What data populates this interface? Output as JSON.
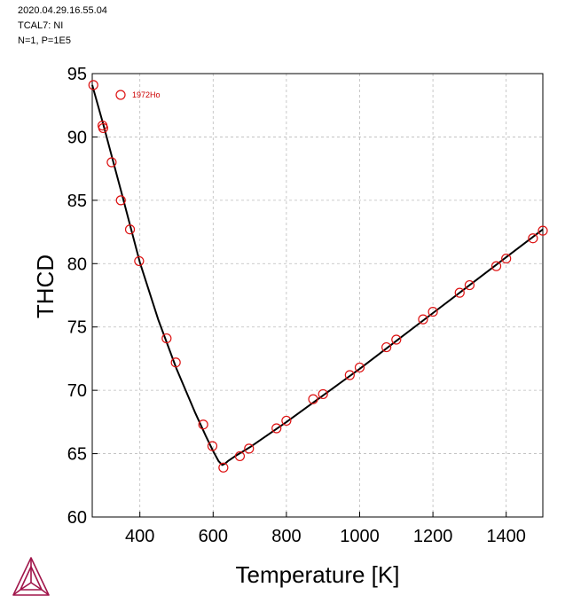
{
  "header": {
    "line1": "2020.04.29.16.55.04",
    "line2": "TCAL7: NI",
    "line3": "N=1, P=1E5"
  },
  "colors": {
    "curve": "#000000",
    "markers": "#dd1111",
    "grid": "#bbbbbb",
    "logo": "#a0154a"
  },
  "icon": "thermo-calc-logo-icon",
  "chart_data": {
    "type": "line",
    "xlabel": "Temperature [K]",
    "ylabel": "THCD",
    "xlim": [
      270,
      1500
    ],
    "ylim": [
      60,
      95
    ],
    "xticks": [
      400,
      600,
      800,
      1000,
      1200,
      1400
    ],
    "yticks": [
      60,
      65,
      70,
      75,
      80,
      85,
      90,
      95
    ],
    "grid": true,
    "legend_position": "top-left",
    "series": [
      {
        "type": "line",
        "x": [
          270,
          300,
          350,
          400,
          450,
          500,
          550,
          580,
          600,
          615,
          625,
          632,
          640,
          660,
          700,
          800,
          900,
          1000,
          1100,
          1200,
          1300,
          1400,
          1500
        ],
        "y": [
          94.1,
          91.0,
          85.6,
          80.1,
          75.6,
          71.7,
          68.3,
          66.4,
          65.2,
          64.4,
          64.1,
          64.2,
          64.4,
          64.8,
          65.5,
          67.5,
          69.6,
          71.7,
          73.9,
          76.1,
          78.3,
          80.5,
          82.7
        ]
      },
      {
        "name": "1972Ho",
        "type": "scatter",
        "x": [
          273,
          298,
          300,
          323,
          348,
          373,
          398,
          473,
          498,
          573,
          598,
          628,
          673,
          698,
          773,
          800,
          873,
          900,
          973,
          1000,
          1073,
          1100,
          1173,
          1200,
          1273,
          1300,
          1373,
          1400,
          1473,
          1500
        ],
        "y": [
          94.1,
          90.9,
          90.7,
          88.0,
          85.0,
          82.7,
          80.2,
          74.1,
          72.2,
          67.3,
          65.6,
          63.9,
          64.8,
          65.4,
          67.0,
          67.6,
          69.3,
          69.7,
          71.2,
          71.8,
          73.4,
          74.0,
          75.6,
          76.2,
          77.7,
          78.3,
          79.8,
          80.4,
          82.0,
          82.6
        ]
      }
    ]
  }
}
